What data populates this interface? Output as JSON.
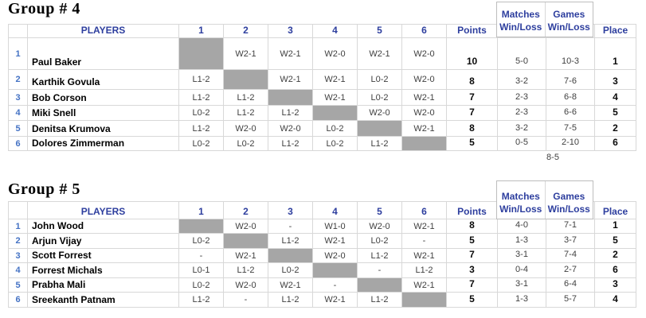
{
  "colors": {
    "header_blue": "#2D3E9E",
    "row_number_blue": "#4472C4",
    "self_cell_gray": "#A6A6A6",
    "grid_border": "#D8D8D8",
    "outer_border": "#BDBDBD",
    "result_text": "#3F3F3F"
  },
  "headers": {
    "players": "PLAYERS",
    "cols": [
      "1",
      "2",
      "3",
      "4",
      "5",
      "6"
    ],
    "points": "Points",
    "matches_top": "Matches",
    "matches_bottom": "Win/Loss",
    "games_top": "Games",
    "games_bottom": "Win/Loss",
    "place": "Place"
  },
  "groups": [
    {
      "title": "Group # 4",
      "footer_games_summary": "8-5",
      "rows": [
        {
          "num": "1",
          "name": "Paul Baker",
          "results": [
            "",
            "W2-1",
            "W2-1",
            "W2-0",
            "W2-1",
            "W2-0"
          ],
          "points": "10",
          "matches": "5-0",
          "games": "10-3",
          "place": "1"
        },
        {
          "num": "2",
          "name": "Karthik Govula",
          "results": [
            "L1-2",
            "",
            "W2-1",
            "W2-1",
            "L0-2",
            "W2-0"
          ],
          "points": "8",
          "matches": "3-2",
          "games": "7-6",
          "place": "3"
        },
        {
          "num": "3",
          "name": "Bob Corson",
          "results": [
            "L1-2",
            "L1-2",
            "",
            "W2-1",
            "L0-2",
            "W2-1"
          ],
          "points": "7",
          "matches": "2-3",
          "games": "6-8",
          "place": "4"
        },
        {
          "num": "4",
          "name": "Miki Snell",
          "results": [
            "L0-2",
            "L1-2",
            "L1-2",
            "",
            "W2-0",
            "W2-0"
          ],
          "points": "7",
          "matches": "2-3",
          "games": "6-6",
          "place": "5"
        },
        {
          "num": "5",
          "name": "Denitsa Krumova",
          "results": [
            "L1-2",
            "W2-0",
            "W2-0",
            "L0-2",
            "",
            "W2-1"
          ],
          "points": "8",
          "matches": "3-2",
          "games": "7-5",
          "place": "2"
        },
        {
          "num": "6",
          "name": "Dolores Zimmerman",
          "results": [
            "L0-2",
            "L0-2",
            "L1-2",
            "L0-2",
            "L1-2",
            ""
          ],
          "points": "5",
          "matches": "0-5",
          "games": "2-10",
          "place": "6"
        }
      ]
    },
    {
      "title": "Group # 5",
      "rows": [
        {
          "num": "1",
          "name": "John Wood",
          "results": [
            "",
            "W2-0",
            "-",
            "W1-0",
            "W2-0",
            "W2-1"
          ],
          "points": "8",
          "matches": "4-0",
          "games": "7-1",
          "place": "1"
        },
        {
          "num": "2",
          "name": "Arjun Vijay",
          "results": [
            "L0-2",
            "",
            "L1-2",
            "W2-1",
            "L0-2",
            "-"
          ],
          "points": "5",
          "matches": "1-3",
          "games": "3-7",
          "place": "5"
        },
        {
          "num": "3",
          "name": "Scott Forrest",
          "results": [
            "-",
            "W2-1",
            "",
            "W2-0",
            "L1-2",
            "W2-1"
          ],
          "points": "7",
          "matches": "3-1",
          "games": "7-4",
          "place": "2"
        },
        {
          "num": "4",
          "name": "Forrest Michals",
          "results": [
            "L0-1",
            "L1-2",
            "L0-2",
            "",
            "-",
            "L1-2"
          ],
          "points": "3",
          "matches": "0-4",
          "games": "2-7",
          "place": "6"
        },
        {
          "num": "5",
          "name": "Prabha Mali",
          "results": [
            "L0-2",
            "W2-0",
            "W2-1",
            "-",
            "",
            "W2-1"
          ],
          "points": "7",
          "matches": "3-1",
          "games": "6-4",
          "place": "3"
        },
        {
          "num": "6",
          "name": "Sreekanth Patnam",
          "results": [
            "L1-2",
            "-",
            "L1-2",
            "W2-1",
            "L1-2",
            ""
          ],
          "points": "5",
          "matches": "1-3",
          "games": "5-7",
          "place": "4"
        }
      ]
    }
  ]
}
